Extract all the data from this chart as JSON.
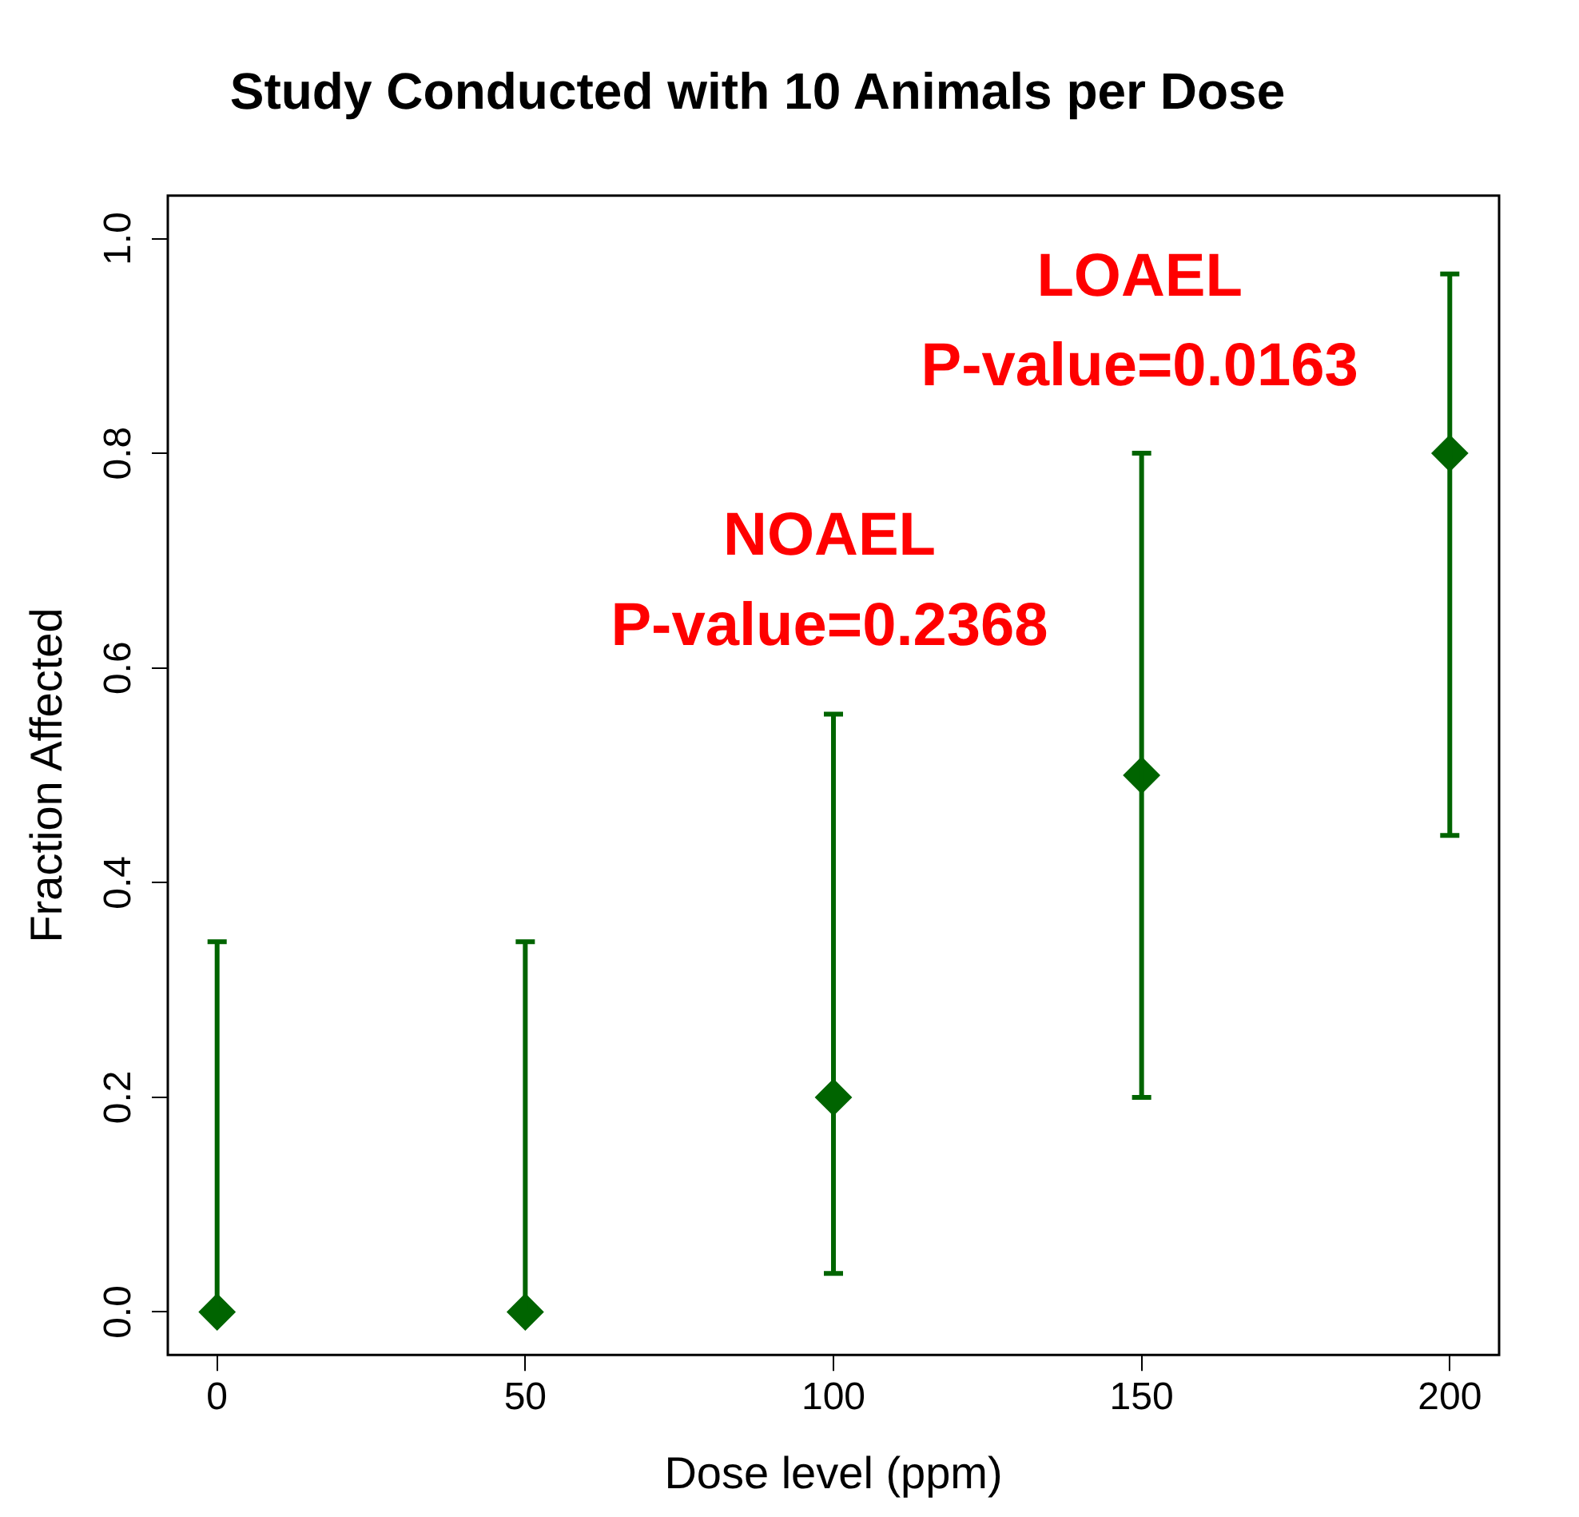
{
  "chart_data": {
    "type": "scatter",
    "title": "Study Conducted with 10 Animals per Dose",
    "xlabel": "Dose level (ppm)",
    "ylabel": "Fraction Affected",
    "x": [
      0,
      50,
      100,
      150,
      200
    ],
    "series": [
      {
        "color": "#006400",
        "values": [
          0,
          0,
          0.2,
          0.5,
          0.8
        ],
        "errors": [
          [
            0,
            0.345
          ],
          [
            0,
            0.345
          ],
          [
            0.036,
            0.557
          ],
          [
            0.2,
            0.8
          ],
          [
            0.444,
            0.967
          ]
        ]
      }
    ],
    "xlim": [
      -8,
      208
    ],
    "xticks": [
      0,
      50,
      100,
      150,
      200
    ],
    "ylim": [
      -0.04,
      1.04
    ],
    "yticks": [
      {
        "value": 0,
        "label": "0.0"
      },
      {
        "value": 0.2,
        "label": "0.2"
      },
      {
        "value": 0.4,
        "label": "0.4"
      },
      {
        "value": 0.6,
        "label": "0.6"
      },
      {
        "value": 0.8,
        "label": "0.8"
      },
      {
        "value": 1,
        "label": "1.0"
      }
    ],
    "annotations": [
      "NOAEL",
      "P-value=0.2368",
      "LOAEL",
      "P-value=0.0163"
    ],
    "marker": "diamond",
    "grid": false,
    "legend": false
  }
}
